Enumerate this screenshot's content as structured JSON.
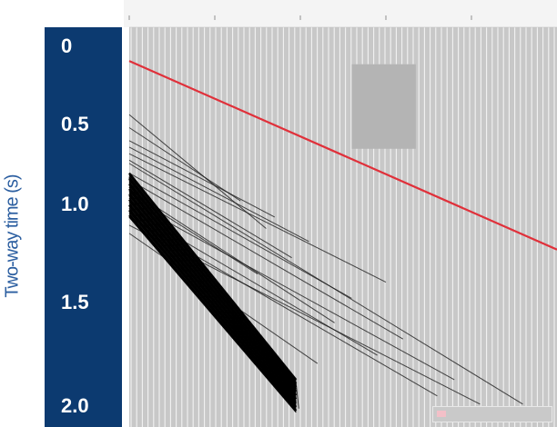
{
  "chart_data": {
    "type": "line",
    "ylabel": "Two-way time (s)",
    "y_ticks": [
      "0",
      "0.5",
      "1.0",
      "1.5",
      "2.0"
    ],
    "y_tick_values": [
      0,
      0.5,
      1.0,
      1.5,
      2.0
    ],
    "ylim": [
      0,
      2.2
    ],
    "y_inverted": true,
    "x_axis_position": "top",
    "xlim": [
      0,
      5
    ],
    "grid": true,
    "colors": {
      "background": "#c8c8c8",
      "traces": "#000000",
      "pick": "#e0303a",
      "axis_panel": "#0c3a70"
    },
    "series": [
      {
        "type": "line",
        "x": [
          0,
          5
        ],
        "y": [
          0.09,
          1.25
        ],
        "color": "#e0303a"
      }
    ],
    "trace_lines": [
      [
        0.0,
        0.42,
        1.6,
        1.12
      ],
      [
        0.0,
        0.5,
        1.3,
        0.95
      ],
      [
        0.0,
        0.62,
        2.1,
        1.2
      ],
      [
        0.0,
        0.7,
        1.9,
        1.3
      ],
      [
        0.0,
        0.78,
        2.6,
        1.55
      ],
      [
        0.0,
        0.82,
        3.2,
        1.8
      ],
      [
        0.0,
        0.88,
        2.4,
        1.7
      ],
      [
        0.0,
        0.95,
        3.8,
        2.05
      ],
      [
        0.0,
        1.0,
        2.9,
        1.9
      ],
      [
        0.0,
        1.05,
        3.6,
        2.15
      ],
      [
        0.0,
        1.1,
        4.1,
        2.2
      ],
      [
        0.0,
        1.15,
        2.2,
        1.95
      ],
      [
        0.0,
        0.72,
        4.6,
        2.2
      ],
      [
        0.0,
        0.66,
        3.0,
        1.45
      ],
      [
        0.0,
        0.58,
        1.7,
        1.05
      ],
      [
        0.0,
        0.9,
        1.5,
        1.4
      ]
    ],
    "dense_band": {
      "x0": 0.0,
      "x1": 1.95,
      "y_top0": 0.78,
      "y_top1": 2.05,
      "y_bot0": 1.05,
      "y_bot1": 2.25
    },
    "highlight_box": {
      "x0": 2.6,
      "x1": 3.35,
      "y0": 0.11,
      "y1": 0.63,
      "color": "#b4b4b4"
    }
  }
}
